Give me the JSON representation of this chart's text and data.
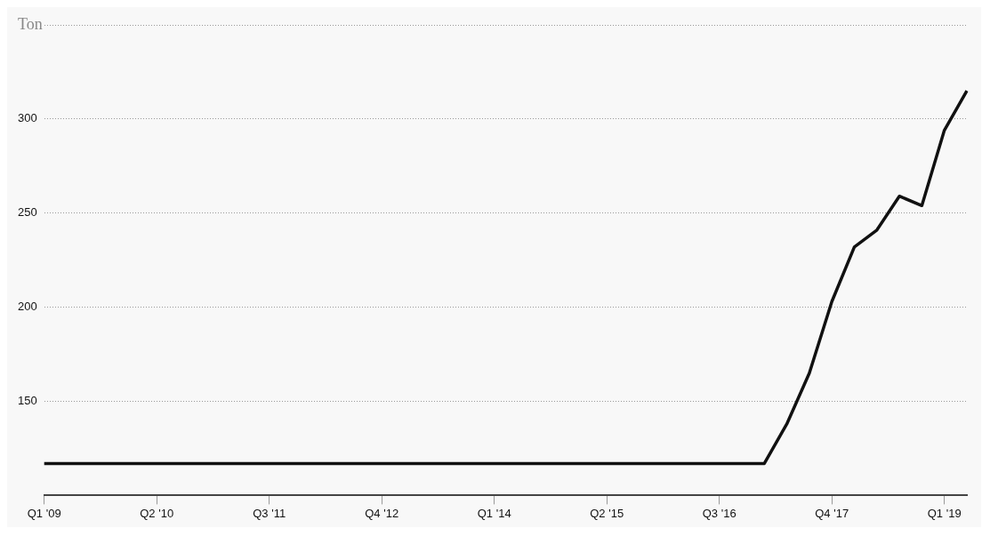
{
  "chart_data": {
    "type": "line",
    "ylabel": "Ton",
    "categories": [
      "Q1 '09",
      null,
      null,
      null,
      null,
      "Q2 '10",
      null,
      null,
      null,
      null,
      "Q3 '11",
      null,
      null,
      null,
      null,
      "Q4 '12",
      null,
      null,
      null,
      null,
      "Q1 '14",
      null,
      null,
      null,
      null,
      "Q2 '15",
      null,
      null,
      null,
      null,
      "Q3 '16",
      null,
      null,
      null,
      null,
      "Q4 '17",
      null,
      null,
      null,
      null,
      "Q1 '19",
      null
    ],
    "series": [
      {
        "color": "#111111",
        "values": [
          117,
          117,
          117,
          117,
          117,
          117,
          117,
          117,
          117,
          117,
          117,
          117,
          117,
          117,
          117,
          117,
          117,
          117,
          117,
          117,
          117,
          117,
          117,
          117,
          117,
          117,
          117,
          117,
          117,
          117,
          117,
          117,
          117,
          138,
          165,
          203,
          232,
          241,
          259,
          254,
          294,
          315
        ]
      }
    ],
    "ylim": [
      100,
      350
    ],
    "yticks": [
      150,
      200,
      250,
      300,
      {
        "value": 350,
        "label": null
      }
    ],
    "grid": "y",
    "marker": "none",
    "line_style": "solid"
  }
}
